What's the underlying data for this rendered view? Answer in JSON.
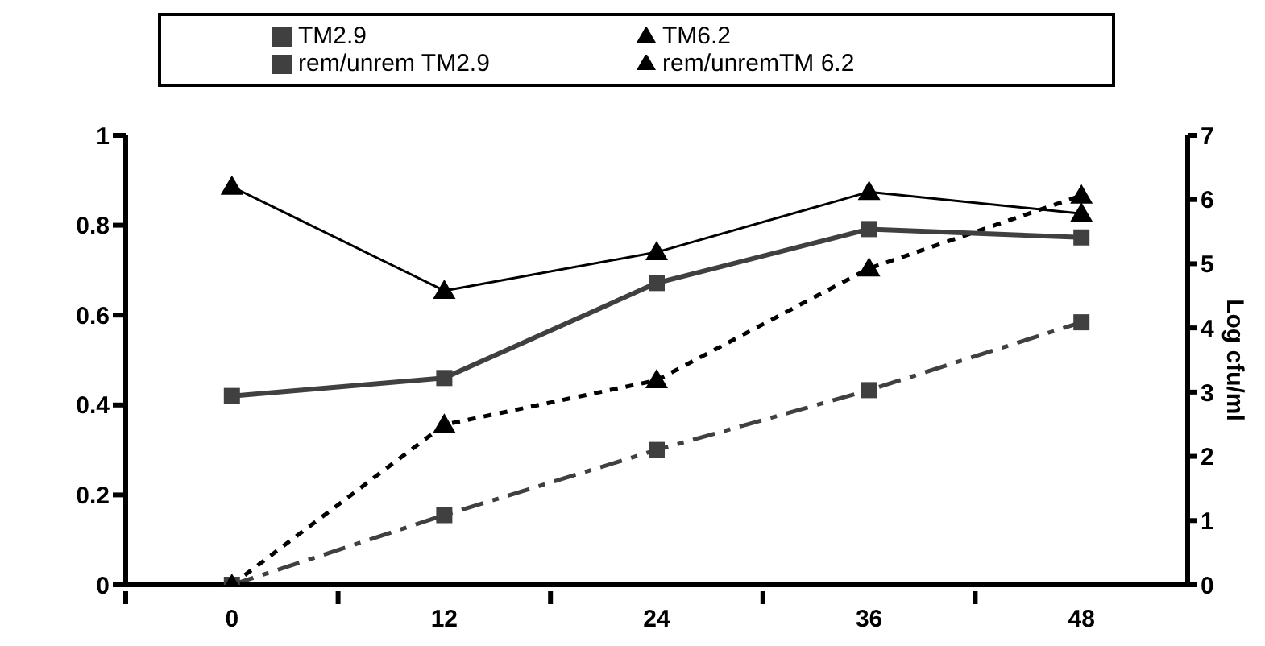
{
  "chart_data": {
    "type": "line",
    "y2label": "Log cfu/ml",
    "categories": [
      "0",
      "12",
      "24",
      "36",
      "48"
    ],
    "series": [
      {
        "name": "rem/unrem TM2.9",
        "color": "#404040",
        "values": [
          0,
          0.155,
          0.3,
          0.433,
          0.584
        ],
        "marker": "square",
        "line_style": "dashed"
      },
      {
        "name": "rem/unremTM 6.2",
        "color": "#000000",
        "values": [
          0,
          0.356,
          0.455,
          0.704,
          0.866
        ],
        "marker": "triangle",
        "line_style": "dotted"
      },
      {
        "name": "TM2.9",
        "color": "#404040",
        "values": [
          2.94,
          3.22,
          4.7,
          5.54,
          5.41
        ],
        "marker": "square",
        "line_style": "solid",
        "axis": "y2"
      },
      {
        "name": "TM6.2",
        "color": "#000000",
        "values": [
          6.2,
          4.58,
          5.18,
          6.12,
          5.78
        ],
        "marker": "triangle",
        "line_style": "solid",
        "axis": "y2"
      }
    ],
    "ylim": [
      0,
      1
    ],
    "yticks": [
      0,
      0.2,
      0.4,
      0.6,
      0.8,
      1
    ],
    "y2lim": [
      0,
      7
    ],
    "y2ticks": [
      0,
      1,
      2,
      3,
      4,
      5,
      6,
      7
    ],
    "grid": false,
    "legend": "top"
  }
}
